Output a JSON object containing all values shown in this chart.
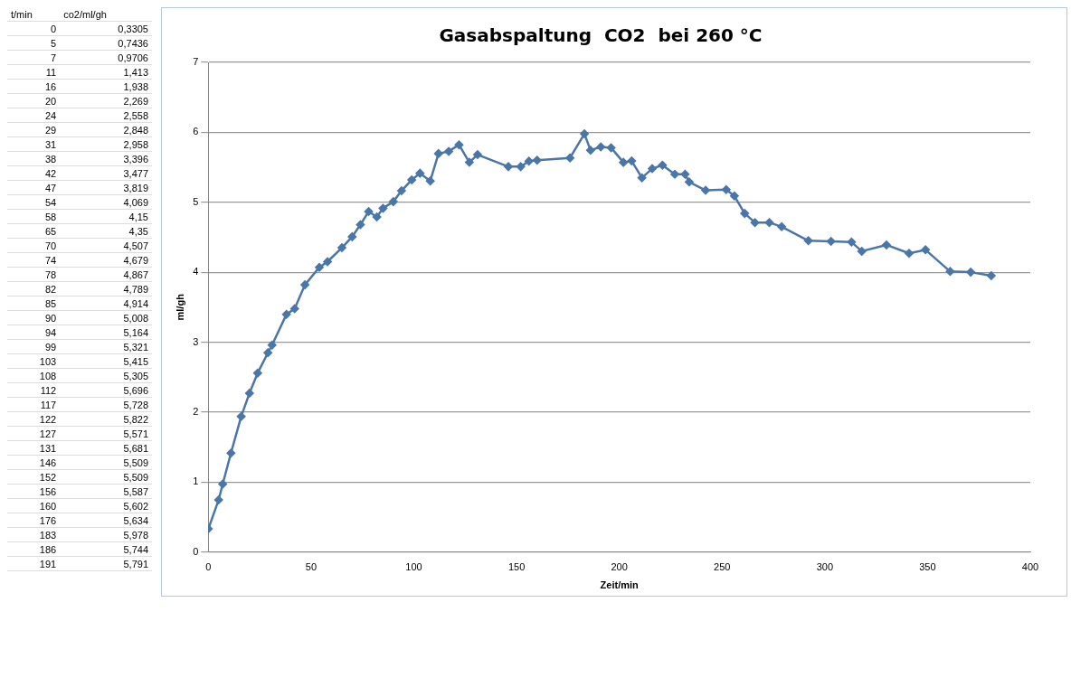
{
  "chart_data": {
    "type": "line",
    "title": "Gasabspaltung  CO2  bei 260 °C",
    "xlabel": "Zeit/min",
    "ylabel": "ml/gh",
    "annotations": [
      "t/min",
      "co2/ml/gh",
      "0",
      "0,3305",
      "5",
      "0,7436",
      "7",
      "0,9706",
      "11",
      "1,413",
      "16",
      "1,938",
      "20",
      "2,269",
      "24",
      "2,558",
      "29",
      "2,848",
      "31",
      "2,958",
      "38",
      "3,396",
      "42",
      "3,477",
      "47",
      "3,819",
      "54",
      "4,069",
      "58",
      "4,15",
      "65",
      "4,35",
      "70",
      "4,507",
      "74",
      "4,679",
      "78",
      "4,867",
      "82",
      "4,789",
      "85",
      "4,914",
      "90",
      "5,008",
      "94",
      "5,164",
      "99",
      "5,321",
      "103",
      "5,415",
      "108",
      "5,305",
      "112",
      "5,696",
      "117",
      "5,728",
      "122",
      "5,822",
      "127",
      "5,571",
      "131",
      "5,681",
      "146",
      "5,509",
      "152",
      "5,509",
      "156",
      "5,587",
      "160",
      "5,602",
      "176",
      "5,634",
      "183",
      "5,978",
      "186",
      "5,744",
      "191",
      "5,791"
    ],
    "x": [
      0,
      5,
      7,
      11,
      16,
      20,
      24,
      29,
      31,
      38,
      42,
      47,
      54,
      58,
      65,
      70,
      74,
      78,
      82,
      85,
      90,
      94,
      99,
      103,
      108,
      112,
      117,
      122,
      127,
      131,
      146,
      152,
      156,
      160,
      176,
      183,
      186,
      191,
      196,
      202,
      206,
      211,
      216,
      221,
      227,
      232,
      234,
      242,
      252,
      256,
      261,
      266,
      273,
      279,
      292,
      303,
      313,
      318,
      330,
      341,
      349,
      361,
      371,
      381
    ],
    "values": [
      0.3305,
      0.7436,
      0.9706,
      1.413,
      1.938,
      2.269,
      2.558,
      2.848,
      2.958,
      3.396,
      3.477,
      3.819,
      4.069,
      4.15,
      4.35,
      4.507,
      4.679,
      4.867,
      4.789,
      4.914,
      5.008,
      5.164,
      5.321,
      5.415,
      5.305,
      5.696,
      5.728,
      5.822,
      5.571,
      5.681,
      5.509,
      5.509,
      5.587,
      5.602,
      5.634,
      5.978,
      5.744,
      5.791,
      5.78,
      5.57,
      5.59,
      5.35,
      5.48,
      5.53,
      5.4,
      5.4,
      5.29,
      5.17,
      5.18,
      5.09,
      4.84,
      4.71,
      4.71,
      4.65,
      4.45,
      4.44,
      4.43,
      4.3,
      4.39,
      4.27,
      4.32,
      4.01,
      4,
      3.95
    ],
    "color": "#4a76a8",
    "marker": "diamond",
    "line_style": "solid",
    "grid": "y",
    "legend": false,
    "xlim": [
      0,
      400
    ],
    "xticks": [
      0,
      50,
      100,
      150,
      200,
      250,
      300,
      350,
      400
    ],
    "ylim": [
      0,
      7
    ],
    "yticks": [
      0,
      1,
      2,
      3,
      4,
      5,
      6,
      7
    ]
  }
}
